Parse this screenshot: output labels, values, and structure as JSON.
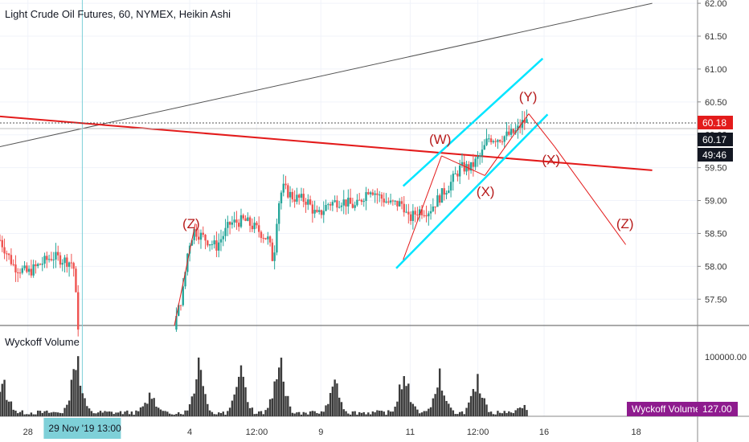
{
  "header": {
    "title": "Light Crude Oil Futures, 60, NYMEX, Heikin Ashi"
  },
  "indicator": {
    "label": "Wyckoff Volume",
    "badge_label": "Wyckoff Volume",
    "badge_value": "127.00",
    "axis_tick": "100000.00"
  },
  "price_labels": {
    "current": "60.18",
    "prev": "60.17",
    "countdown": "49:46"
  },
  "crosshair_label": "29 Nov '19   13:00",
  "colors": {
    "up": "#26a69a",
    "down": "#ef5350",
    "channel": "#00e5ff",
    "trend_red": "#e31b1b",
    "wave_text": "#b71c1c",
    "volume": "#3b3b3b",
    "badge": "#8e1b8e",
    "crosshair_badge": "#7ed0d8"
  },
  "chart_data": {
    "type": "candlestick",
    "y_ticks": [
      "62.00",
      "61.50",
      "61.00",
      "60.50",
      "60.00",
      "59.50",
      "59.00",
      "58.50",
      "58.00",
      "57.50"
    ],
    "x_ticks": [
      "28",
      "4",
      "12:00",
      "9",
      "11",
      "12:00",
      "16",
      "18"
    ],
    "ylim": [
      57.1,
      62.05
    ],
    "wave_labels": [
      {
        "text": "(Z)",
        "t": 0.274,
        "price": 58.58
      },
      {
        "text": "(W)",
        "t": 0.631,
        "price": 59.86
      },
      {
        "text": "(X)",
        "t": 0.696,
        "price": 59.07
      },
      {
        "text": "(Y)",
        "t": 0.757,
        "price": 60.51
      },
      {
        "text": "(X)",
        "t": 0.79,
        "price": 59.55
      },
      {
        "text": "(Z)",
        "t": 0.896,
        "price": 58.58
      }
    ],
    "waves": [
      [
        0.25,
        57.1,
        0.28,
        58.65
      ],
      [
        0.578,
        58.1,
        0.633,
        59.68
      ],
      [
        0.633,
        59.68,
        0.695,
        59.38
      ],
      [
        0.695,
        59.38,
        0.758,
        60.32
      ],
      [
        0.758,
        60.32,
        0.795,
        59.82
      ],
      [
        0.795,
        59.82,
        0.897,
        58.33
      ]
    ],
    "channel_upper": [
      0.578,
      59.22,
      0.778,
      61.16
    ],
    "channel_lower": [
      0.568,
      57.97,
      0.785,
      60.31
    ],
    "red_trendline": [
      0.0,
      60.28,
      0.935,
      59.46
    ],
    "grey_trendline": [
      0.0,
      59.82,
      0.935,
      62.0
    ],
    "current_price": 60.18,
    "prev_close": 60.17,
    "crosshair_t": 0.118,
    "candle_path": [
      [
        0.0,
        58.4
      ],
      [
        0.02,
        58.0
      ],
      [
        0.04,
        57.9
      ],
      [
        0.06,
        58.05
      ],
      [
        0.075,
        58.15
      ],
      [
        0.09,
        58.1
      ],
      [
        0.105,
        58.05
      ],
      [
        0.112,
        57.1
      ],
      [
        0.25,
        57.1
      ],
      [
        0.262,
        57.6
      ],
      [
        0.27,
        58.3
      ],
      [
        0.278,
        58.55
      ],
      [
        0.29,
        58.45
      ],
      [
        0.31,
        58.3
      ],
      [
        0.33,
        58.65
      ],
      [
        0.35,
        58.7
      ],
      [
        0.37,
        58.55
      ],
      [
        0.385,
        58.4
      ],
      [
        0.392,
        58.05
      ],
      [
        0.398,
        58.9
      ],
      [
        0.405,
        59.2
      ],
      [
        0.42,
        59.05
      ],
      [
        0.44,
        59.0
      ],
      [
        0.455,
        58.75
      ],
      [
        0.47,
        58.95
      ],
      [
        0.49,
        59.0
      ],
      [
        0.51,
        58.9
      ],
      [
        0.53,
        59.2
      ],
      [
        0.545,
        59.05
      ],
      [
        0.56,
        58.95
      ],
      [
        0.578,
        58.95
      ],
      [
        0.585,
        58.7
      ],
      [
        0.6,
        58.85
      ],
      [
        0.615,
        58.85
      ],
      [
        0.63,
        59.05
      ],
      [
        0.645,
        59.25
      ],
      [
        0.66,
        59.5
      ],
      [
        0.675,
        59.5
      ],
      [
        0.69,
        59.7
      ],
      [
        0.7,
        59.95
      ],
      [
        0.715,
        59.95
      ],
      [
        0.73,
        60.0
      ],
      [
        0.74,
        60.05
      ],
      [
        0.75,
        60.2
      ],
      [
        0.758,
        60.2
      ]
    ],
    "volume_ylim": [
      0,
      120000
    ],
    "volume_peaks": [
      [
        0.005,
        55000
      ],
      [
        0.11,
        107000
      ],
      [
        0.215,
        38000
      ],
      [
        0.285,
        95000
      ],
      [
        0.345,
        75000
      ],
      [
        0.4,
        110000
      ],
      [
        0.48,
        55000
      ],
      [
        0.58,
        80000
      ],
      [
        0.63,
        65000
      ],
      [
        0.685,
        70000
      ],
      [
        0.75,
        15000
      ]
    ]
  }
}
